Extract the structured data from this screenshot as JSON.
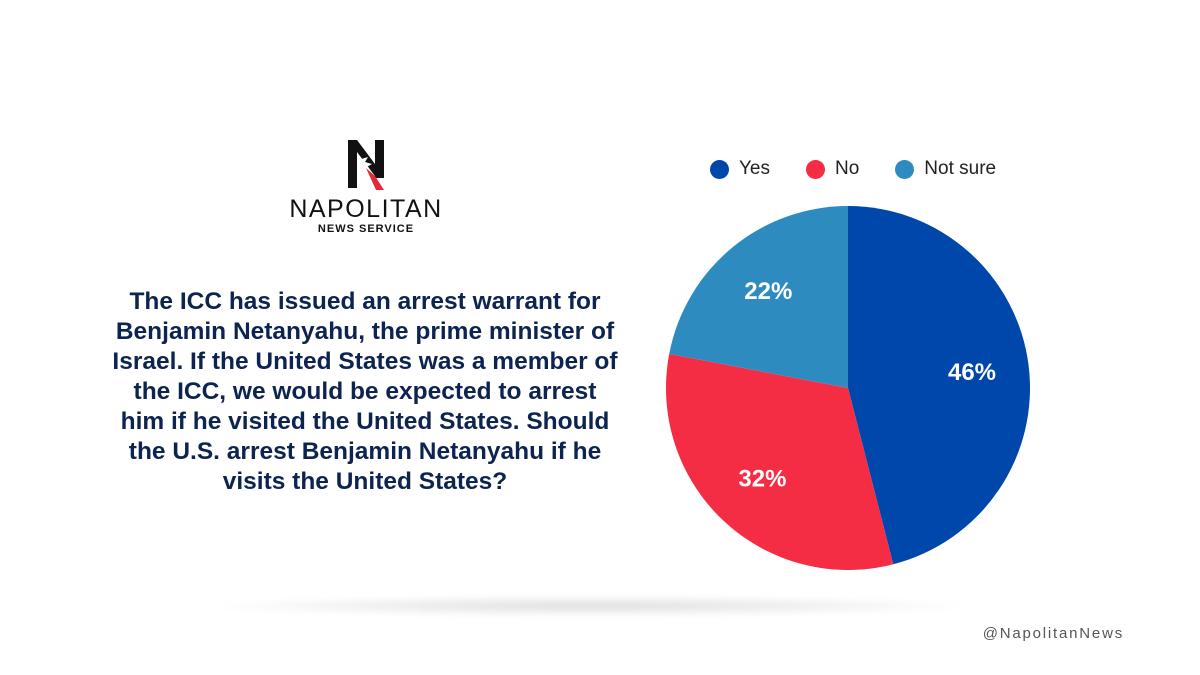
{
  "brand": {
    "name": "NAPOLITAN",
    "subtitle": "NEWS SERVICE",
    "logo_icon": "eagle-n-logo-icon",
    "handle": "@NapolitanNews"
  },
  "question": "The ICC has issued an arrest warrant for Benjamin Netanyahu, the prime minister of Israel. If the United States was a member of the ICC, we would be expected to arrest him if he visited the United States. Should the U.S. arrest Benjamin Netanyahu if he visits the United States?",
  "chart_data": {
    "type": "pie",
    "title": "",
    "legend_position": "top",
    "labels": [
      "Yes",
      "No",
      "Not sure"
    ],
    "values": [
      46,
      32,
      22
    ],
    "value_labels": [
      "46%",
      "32%",
      "22%"
    ],
    "colors": [
      "#0047ab",
      "#f42d45",
      "#2e8bc0"
    ],
    "label_color": "#ffffff"
  }
}
